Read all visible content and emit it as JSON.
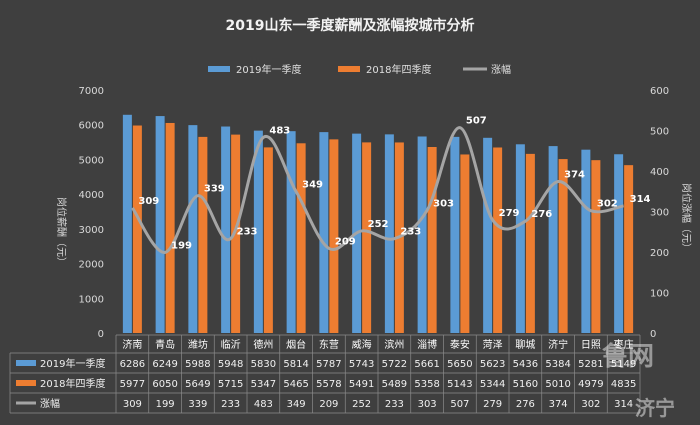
{
  "chart_data": {
    "type": "bar",
    "title": "2019山东一季度薪酬及涨幅按城市分析",
    "categories": [
      "济南",
      "青岛",
      "潍坊",
      "临沂",
      "德州",
      "烟台",
      "东营",
      "威海",
      "滨州",
      "淄博",
      "泰安",
      "菏泽",
      "聊城",
      "济宁",
      "日照",
      "枣庄"
    ],
    "series": [
      {
        "name": "2019年一季度",
        "type": "bar",
        "color": "#5b9bd5",
        "values": [
          6286,
          6249,
          5988,
          5948,
          5830,
          5814,
          5787,
          5743,
          5722,
          5661,
          5650,
          5623,
          5436,
          5384,
          5281,
          5149
        ]
      },
      {
        "name": "2018年四季度",
        "type": "bar",
        "color": "#ed7d31",
        "values": [
          5977,
          6050,
          5649,
          5715,
          5347,
          5465,
          5578,
          5491,
          5489,
          5358,
          5143,
          5344,
          5160,
          5010,
          4979,
          4835
        ]
      },
      {
        "name": "涨幅",
        "type": "line",
        "axis": "right",
        "color": "#a5a5a5",
        "values": [
          309,
          199,
          339,
          233,
          483,
          349,
          209,
          252,
          233,
          303,
          507,
          279,
          276,
          374,
          302,
          314
        ]
      }
    ],
    "ylabel_left": "岗位薪酬（元）",
    "ylabel_right": "岗位涨幅（元）",
    "ylim_left": [
      0,
      7000
    ],
    "yticks_left": [
      0,
      1000,
      2000,
      3000,
      4000,
      5000,
      6000,
      7000
    ],
    "ylim_right": [
      0,
      600
    ],
    "yticks_right": [
      0,
      100,
      200,
      300,
      400,
      500,
      600
    ],
    "legend_position": "top",
    "grid": false,
    "data_table": true
  },
  "watermark": {
    "line1": "鲁网",
    "line2": "济宁"
  }
}
